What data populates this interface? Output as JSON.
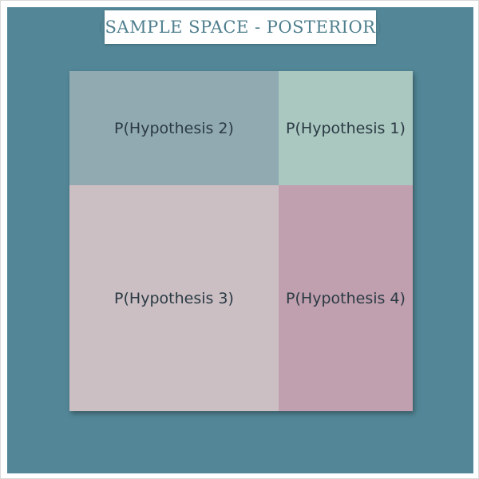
{
  "title": "(SAMPLE SPACE - POSTERIOR)",
  "colors": {
    "background": "#538797",
    "title_text": "#4f7f8e",
    "hypothesis_1": "#aac8c0",
    "hypothesis_2": "#91aab2",
    "hypothesis_3": "#cbbfc3",
    "hypothesis_4": "#c09fae"
  },
  "regions": [
    {
      "label": "P(Hypothesis 2)"
    },
    {
      "label": "P(Hypothesis 1)"
    },
    {
      "label": "P(Hypothesis 3)"
    },
    {
      "label": "P(Hypothesis 4)"
    }
  ]
}
